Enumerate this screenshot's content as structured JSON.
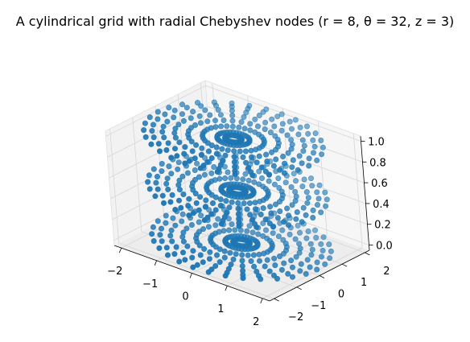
{
  "chart_data": {
    "type": "scatter",
    "projection": "3d",
    "title": "A cylindrical grid with radial Chebyshev nodes (r = 8, θ = 32, z = 3)",
    "xlabel": "",
    "ylabel": "",
    "zlabel": "",
    "xlim": [
      -2.2,
      2.2
    ],
    "ylim": [
      -2.2,
      2.2
    ],
    "zlim": [
      -0.05,
      1.05
    ],
    "x_ticks": [
      "−2",
      "−1",
      "0",
      "1",
      "2"
    ],
    "y_ticks": [
      "−2",
      "−1",
      "0",
      "1",
      "2"
    ],
    "z_ticks": [
      "0.0",
      "0.2",
      "0.4",
      "0.6",
      "0.8",
      "1.0"
    ],
    "grid": true,
    "marker_color": "#1f77b4",
    "generator": {
      "radii": [
        0.2005,
        0.3902,
        0.7385,
        1.0826,
        1.4045,
        1.6934,
        1.9401,
        2.1364
      ],
      "theta_count": 32,
      "z_levels": [
        0.0,
        0.5,
        1.0
      ]
    }
  }
}
